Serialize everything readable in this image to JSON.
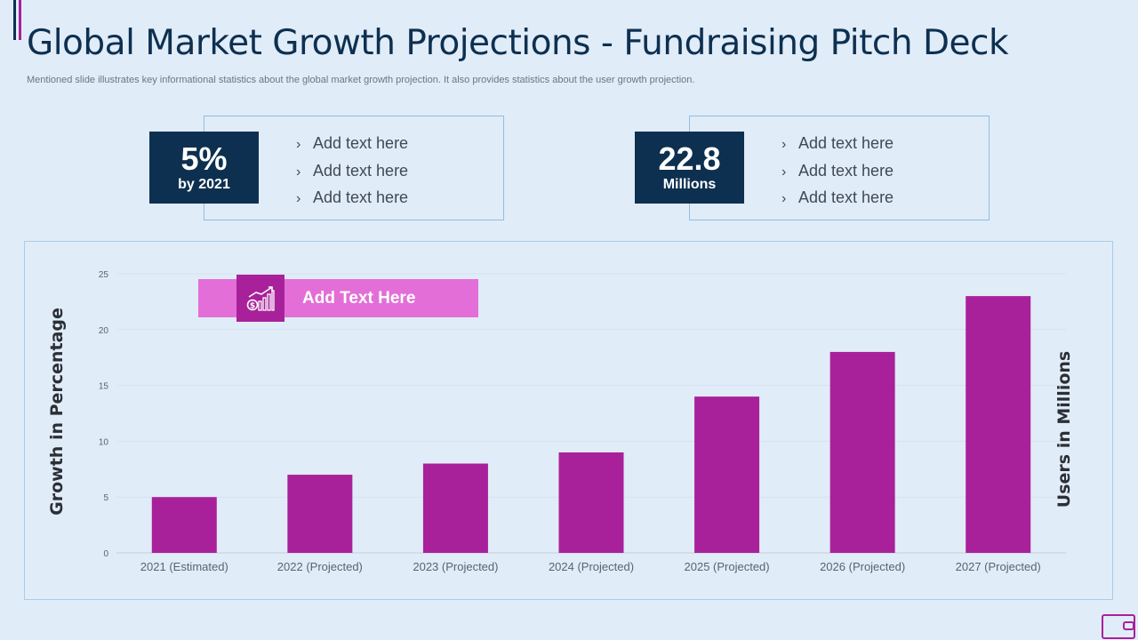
{
  "slide": {
    "title": "Global Market Growth Projections - Fundraising Pitch Deck",
    "subtitle": "Mentioned slide illustrates key informational statistics about the global market growth projection. It also provides statistics about the user growth projection."
  },
  "stats": [
    {
      "value": "5%",
      "caption": "by 2021",
      "bullets": [
        "Add text here",
        "Add text here",
        "Add text here"
      ]
    },
    {
      "value": "22.8",
      "caption": "Millions",
      "bullets": [
        "Add text here",
        "Add text here",
        "Add text here"
      ]
    }
  ],
  "callout": {
    "label": "Add Text Here",
    "icon": "growth-chart-dollar-icon"
  },
  "colors": {
    "navy": "#0d3050",
    "bar": "#a8219a",
    "callout": "#e36ed8",
    "background": "#e1ecf9"
  },
  "chart_data": {
    "type": "bar",
    "categories": [
      "2021 (Estimated)",
      "2022 (Projected)",
      "2023 (Projected)",
      "2024 (Projected)",
      "2025 (Projected)",
      "2026 (Projected)",
      "2027 (Projected)"
    ],
    "values": [
      5,
      7,
      8,
      9,
      14,
      18,
      23
    ],
    "ylabel": "Growth in Percentage",
    "y2label": "Users in Millions",
    "ylim": [
      0,
      25
    ],
    "yticks": [
      0,
      5,
      10,
      15,
      20,
      25
    ],
    "grid": true
  }
}
